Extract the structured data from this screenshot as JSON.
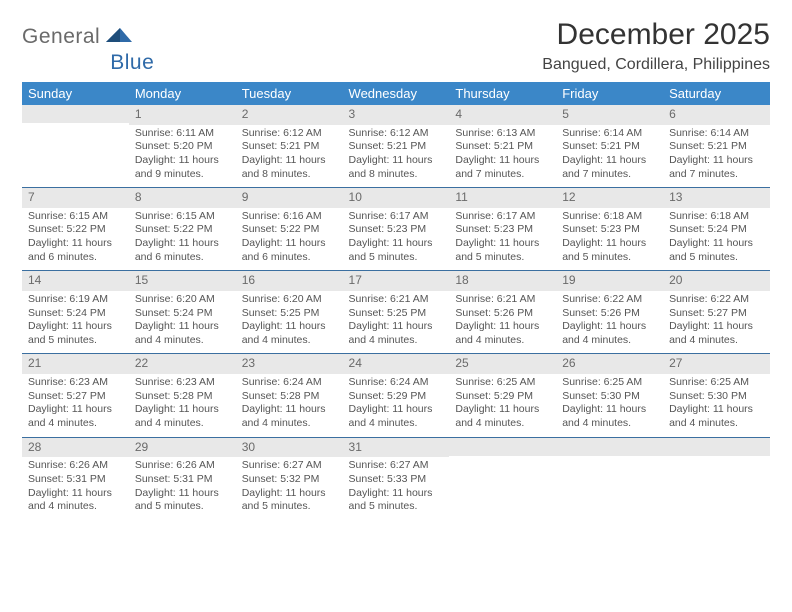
{
  "brand": {
    "part1": "General",
    "part2": "Blue"
  },
  "title": "December 2025",
  "subtitle": "Bangued, Cordillera, Philippines",
  "colors": {
    "accent": "#3b87c8",
    "row_divider": "#3b6fa0",
    "day_bg": "#e8e8e8",
    "text": "#333333",
    "background": "#ffffff"
  },
  "typography": {
    "title_fontsize": 30,
    "subtitle_fontsize": 16,
    "header_fontsize": 13,
    "body_fontsize": 10.5,
    "font_family": "Arial"
  },
  "weekdays": [
    "Sunday",
    "Monday",
    "Tuesday",
    "Wednesday",
    "Thursday",
    "Friday",
    "Saturday"
  ],
  "weeks": [
    [
      {
        "n": "",
        "lines": []
      },
      {
        "n": "1",
        "lines": [
          "Sunrise: 6:11 AM",
          "Sunset: 5:20 PM",
          "Daylight: 11 hours and 9 minutes."
        ]
      },
      {
        "n": "2",
        "lines": [
          "Sunrise: 6:12 AM",
          "Sunset: 5:21 PM",
          "Daylight: 11 hours and 8 minutes."
        ]
      },
      {
        "n": "3",
        "lines": [
          "Sunrise: 6:12 AM",
          "Sunset: 5:21 PM",
          "Daylight: 11 hours and 8 minutes."
        ]
      },
      {
        "n": "4",
        "lines": [
          "Sunrise: 6:13 AM",
          "Sunset: 5:21 PM",
          "Daylight: 11 hours and 7 minutes."
        ]
      },
      {
        "n": "5",
        "lines": [
          "Sunrise: 6:14 AM",
          "Sunset: 5:21 PM",
          "Daylight: 11 hours and 7 minutes."
        ]
      },
      {
        "n": "6",
        "lines": [
          "Sunrise: 6:14 AM",
          "Sunset: 5:21 PM",
          "Daylight: 11 hours and 7 minutes."
        ]
      }
    ],
    [
      {
        "n": "7",
        "lines": [
          "Sunrise: 6:15 AM",
          "Sunset: 5:22 PM",
          "Daylight: 11 hours and 6 minutes."
        ]
      },
      {
        "n": "8",
        "lines": [
          "Sunrise: 6:15 AM",
          "Sunset: 5:22 PM",
          "Daylight: 11 hours and 6 minutes."
        ]
      },
      {
        "n": "9",
        "lines": [
          "Sunrise: 6:16 AM",
          "Sunset: 5:22 PM",
          "Daylight: 11 hours and 6 minutes."
        ]
      },
      {
        "n": "10",
        "lines": [
          "Sunrise: 6:17 AM",
          "Sunset: 5:23 PM",
          "Daylight: 11 hours and 5 minutes."
        ]
      },
      {
        "n": "11",
        "lines": [
          "Sunrise: 6:17 AM",
          "Sunset: 5:23 PM",
          "Daylight: 11 hours and 5 minutes."
        ]
      },
      {
        "n": "12",
        "lines": [
          "Sunrise: 6:18 AM",
          "Sunset: 5:23 PM",
          "Daylight: 11 hours and 5 minutes."
        ]
      },
      {
        "n": "13",
        "lines": [
          "Sunrise: 6:18 AM",
          "Sunset: 5:24 PM",
          "Daylight: 11 hours and 5 minutes."
        ]
      }
    ],
    [
      {
        "n": "14",
        "lines": [
          "Sunrise: 6:19 AM",
          "Sunset: 5:24 PM",
          "Daylight: 11 hours and 5 minutes."
        ]
      },
      {
        "n": "15",
        "lines": [
          "Sunrise: 6:20 AM",
          "Sunset: 5:24 PM",
          "Daylight: 11 hours and 4 minutes."
        ]
      },
      {
        "n": "16",
        "lines": [
          "Sunrise: 6:20 AM",
          "Sunset: 5:25 PM",
          "Daylight: 11 hours and 4 minutes."
        ]
      },
      {
        "n": "17",
        "lines": [
          "Sunrise: 6:21 AM",
          "Sunset: 5:25 PM",
          "Daylight: 11 hours and 4 minutes."
        ]
      },
      {
        "n": "18",
        "lines": [
          "Sunrise: 6:21 AM",
          "Sunset: 5:26 PM",
          "Daylight: 11 hours and 4 minutes."
        ]
      },
      {
        "n": "19",
        "lines": [
          "Sunrise: 6:22 AM",
          "Sunset: 5:26 PM",
          "Daylight: 11 hours and 4 minutes."
        ]
      },
      {
        "n": "20",
        "lines": [
          "Sunrise: 6:22 AM",
          "Sunset: 5:27 PM",
          "Daylight: 11 hours and 4 minutes."
        ]
      }
    ],
    [
      {
        "n": "21",
        "lines": [
          "Sunrise: 6:23 AM",
          "Sunset: 5:27 PM",
          "Daylight: 11 hours and 4 minutes."
        ]
      },
      {
        "n": "22",
        "lines": [
          "Sunrise: 6:23 AM",
          "Sunset: 5:28 PM",
          "Daylight: 11 hours and 4 minutes."
        ]
      },
      {
        "n": "23",
        "lines": [
          "Sunrise: 6:24 AM",
          "Sunset: 5:28 PM",
          "Daylight: 11 hours and 4 minutes."
        ]
      },
      {
        "n": "24",
        "lines": [
          "Sunrise: 6:24 AM",
          "Sunset: 5:29 PM",
          "Daylight: 11 hours and 4 minutes."
        ]
      },
      {
        "n": "25",
        "lines": [
          "Sunrise: 6:25 AM",
          "Sunset: 5:29 PM",
          "Daylight: 11 hours and 4 minutes."
        ]
      },
      {
        "n": "26",
        "lines": [
          "Sunrise: 6:25 AM",
          "Sunset: 5:30 PM",
          "Daylight: 11 hours and 4 minutes."
        ]
      },
      {
        "n": "27",
        "lines": [
          "Sunrise: 6:25 AM",
          "Sunset: 5:30 PM",
          "Daylight: 11 hours and 4 minutes."
        ]
      }
    ],
    [
      {
        "n": "28",
        "lines": [
          "Sunrise: 6:26 AM",
          "Sunset: 5:31 PM",
          "Daylight: 11 hours and 4 minutes."
        ]
      },
      {
        "n": "29",
        "lines": [
          "Sunrise: 6:26 AM",
          "Sunset: 5:31 PM",
          "Daylight: 11 hours and 5 minutes."
        ]
      },
      {
        "n": "30",
        "lines": [
          "Sunrise: 6:27 AM",
          "Sunset: 5:32 PM",
          "Daylight: 11 hours and 5 minutes."
        ]
      },
      {
        "n": "31",
        "lines": [
          "Sunrise: 6:27 AM",
          "Sunset: 5:33 PM",
          "Daylight: 11 hours and 5 minutes."
        ]
      },
      {
        "n": "",
        "lines": []
      },
      {
        "n": "",
        "lines": []
      },
      {
        "n": "",
        "lines": []
      }
    ]
  ]
}
